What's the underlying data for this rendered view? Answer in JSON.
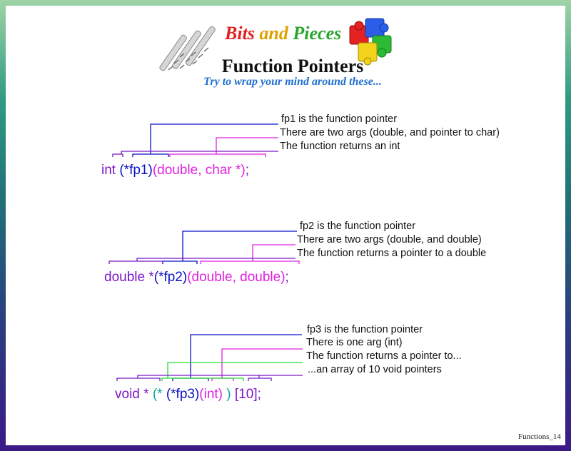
{
  "header": {
    "brand_words": [
      {
        "text": "Bits",
        "color": "#e02020"
      },
      {
        "text": " and ",
        "color": "#e0a000"
      },
      {
        "text": "Pieces",
        "color": "#2aa52a"
      }
    ],
    "title": "Function Pointers",
    "subtitle": "Try to wrap your mind around these..."
  },
  "colors": {
    "purple": "#7a17c8",
    "blue": "#0a10c8",
    "magenta": "#e020e0",
    "green": "#22dd33",
    "teal": "#0aa89a"
  },
  "examples": [
    {
      "tokens": [
        {
          "text": "int ",
          "color": "purple"
        },
        {
          "text": "(*fp1)",
          "color": "blue"
        },
        {
          "text": "(double, char *)",
          "color": "magenta"
        },
        {
          "text": ";",
          "color": "purple"
        }
      ],
      "labels": [
        "fp1 is the function pointer",
        "There are two args (double, and pointer to char)",
        "The function returns an int"
      ]
    },
    {
      "tokens": [
        {
          "text": "double *",
          "color": "purple"
        },
        {
          "text": "(*fp2)",
          "color": "blue"
        },
        {
          "text": "(double, double)",
          "color": "magenta"
        },
        {
          "text": ";",
          "color": "purple"
        }
      ],
      "labels": [
        "fp2 is the function pointer",
        "There are two args (double, and double)",
        "The function returns a pointer to a double"
      ]
    },
    {
      "tokens": [
        {
          "text": "void * ",
          "color": "purple"
        },
        {
          "text": "(* ",
          "color": "teal"
        },
        {
          "text": "(*fp3)",
          "color": "blue"
        },
        {
          "text": "(int)",
          "color": "magenta"
        },
        {
          "text": " ) ",
          "color": "teal"
        },
        {
          "text": "[10]",
          "color": "purple"
        },
        {
          "text": ";",
          "color": "purple"
        }
      ],
      "labels": [
        "fp3 is the function pointer",
        "There is one arg (int)",
        "The function returns a pointer to...",
        "...an array of 10 void pointers"
      ]
    }
  ],
  "footer": "Functions_14"
}
